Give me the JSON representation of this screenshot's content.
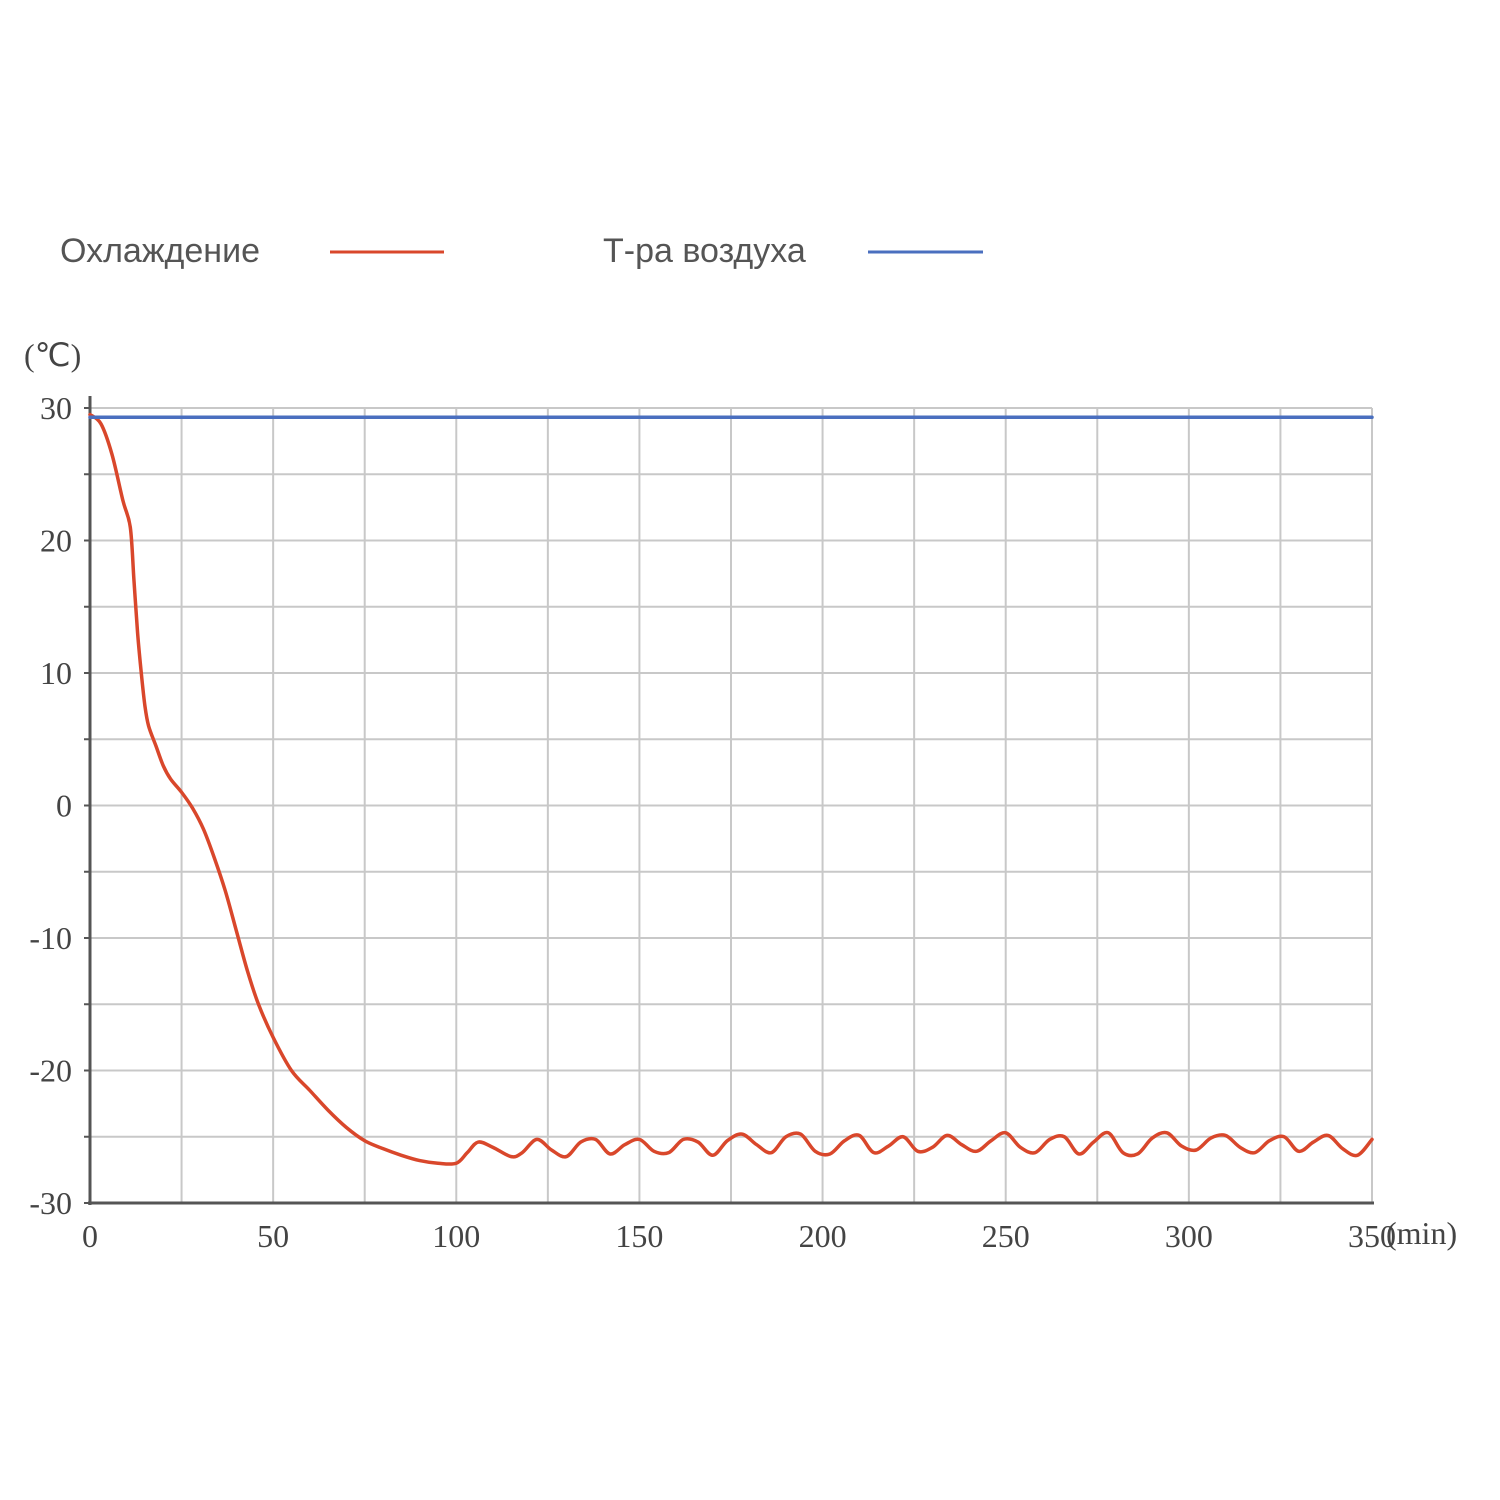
{
  "chart_data": {
    "type": "line",
    "ylabel": "(℃)",
    "xlabel": "(min)",
    "xlim": [
      0,
      350
    ],
    "ylim": [
      -30,
      30
    ],
    "x_ticks": [
      "0",
      "50",
      "100",
      "150",
      "200",
      "250",
      "300",
      "350"
    ],
    "y_ticks": [
      "30",
      "20",
      "10",
      "0",
      "-10",
      "-20",
      "-30"
    ],
    "x_tick_values": [
      0,
      50,
      100,
      150,
      200,
      250,
      300,
      350
    ],
    "y_tick_values": [
      30,
      20,
      10,
      0,
      -10,
      -20,
      -30
    ],
    "grid": true,
    "legend_position": "top",
    "series": [
      {
        "name": "Охлаждение",
        "color": "#d9472b",
        "x": [
          0,
          3,
          6,
          9,
          11,
          12,
          13,
          14,
          15,
          16,
          18,
          20,
          22,
          25,
          28,
          31,
          34,
          37,
          40,
          43,
          46,
          50,
          55,
          60,
          65,
          70,
          75,
          80,
          85,
          90,
          95,
          100,
          103,
          106,
          110,
          115,
          118,
          122,
          126,
          130,
          134,
          138,
          142,
          146,
          150,
          154,
          158,
          162,
          166,
          170,
          174,
          178,
          182,
          186,
          190,
          194,
          198,
          202,
          206,
          210,
          214,
          218,
          222,
          226,
          230,
          234,
          238,
          242,
          246,
          250,
          254,
          258,
          262,
          266,
          270,
          274,
          278,
          282,
          286,
          290,
          294,
          298,
          302,
          306,
          310,
          314,
          318,
          322,
          326,
          330,
          334,
          338,
          342,
          346,
          350
        ],
        "y": [
          29.5,
          28.8,
          26.5,
          23,
          21,
          17,
          13,
          10,
          7.5,
          6,
          4.5,
          3,
          2,
          1,
          -0.2,
          -1.8,
          -4,
          -6.5,
          -9.5,
          -12.5,
          -15,
          -17.5,
          -20,
          -21.5,
          -23,
          -24.3,
          -25.3,
          -25.9,
          -26.4,
          -26.8,
          -27,
          -27,
          -26.2,
          -25.4,
          -25.8,
          -26.5,
          -26.2,
          -25.2,
          -26,
          -26.5,
          -25.4,
          -25.2,
          -26.3,
          -25.6,
          -25.2,
          -26.1,
          -26.2,
          -25.2,
          -25.4,
          -26.4,
          -25.3,
          -24.8,
          -25.6,
          -26.2,
          -25,
          -24.8,
          -26.1,
          -26.3,
          -25.3,
          -24.9,
          -26.2,
          -25.7,
          -25,
          -26.1,
          -25.8,
          -24.9,
          -25.6,
          -26.1,
          -25.3,
          -24.7,
          -25.8,
          -26.2,
          -25.2,
          -25,
          -26.3,
          -25.4,
          -24.7,
          -26.2,
          -26.3,
          -25.1,
          -24.7,
          -25.7,
          -26,
          -25.1,
          -24.9,
          -25.8,
          -26.2,
          -25.3,
          -25,
          -26.1,
          -25.4,
          -24.9,
          -25.9,
          -26.4,
          -25.2
        ]
      },
      {
        "name": "Т-ра воздуха",
        "color": "#4a6fbf",
        "x": [
          0,
          350
        ],
        "y": [
          29.3,
          29.3
        ]
      }
    ]
  }
}
